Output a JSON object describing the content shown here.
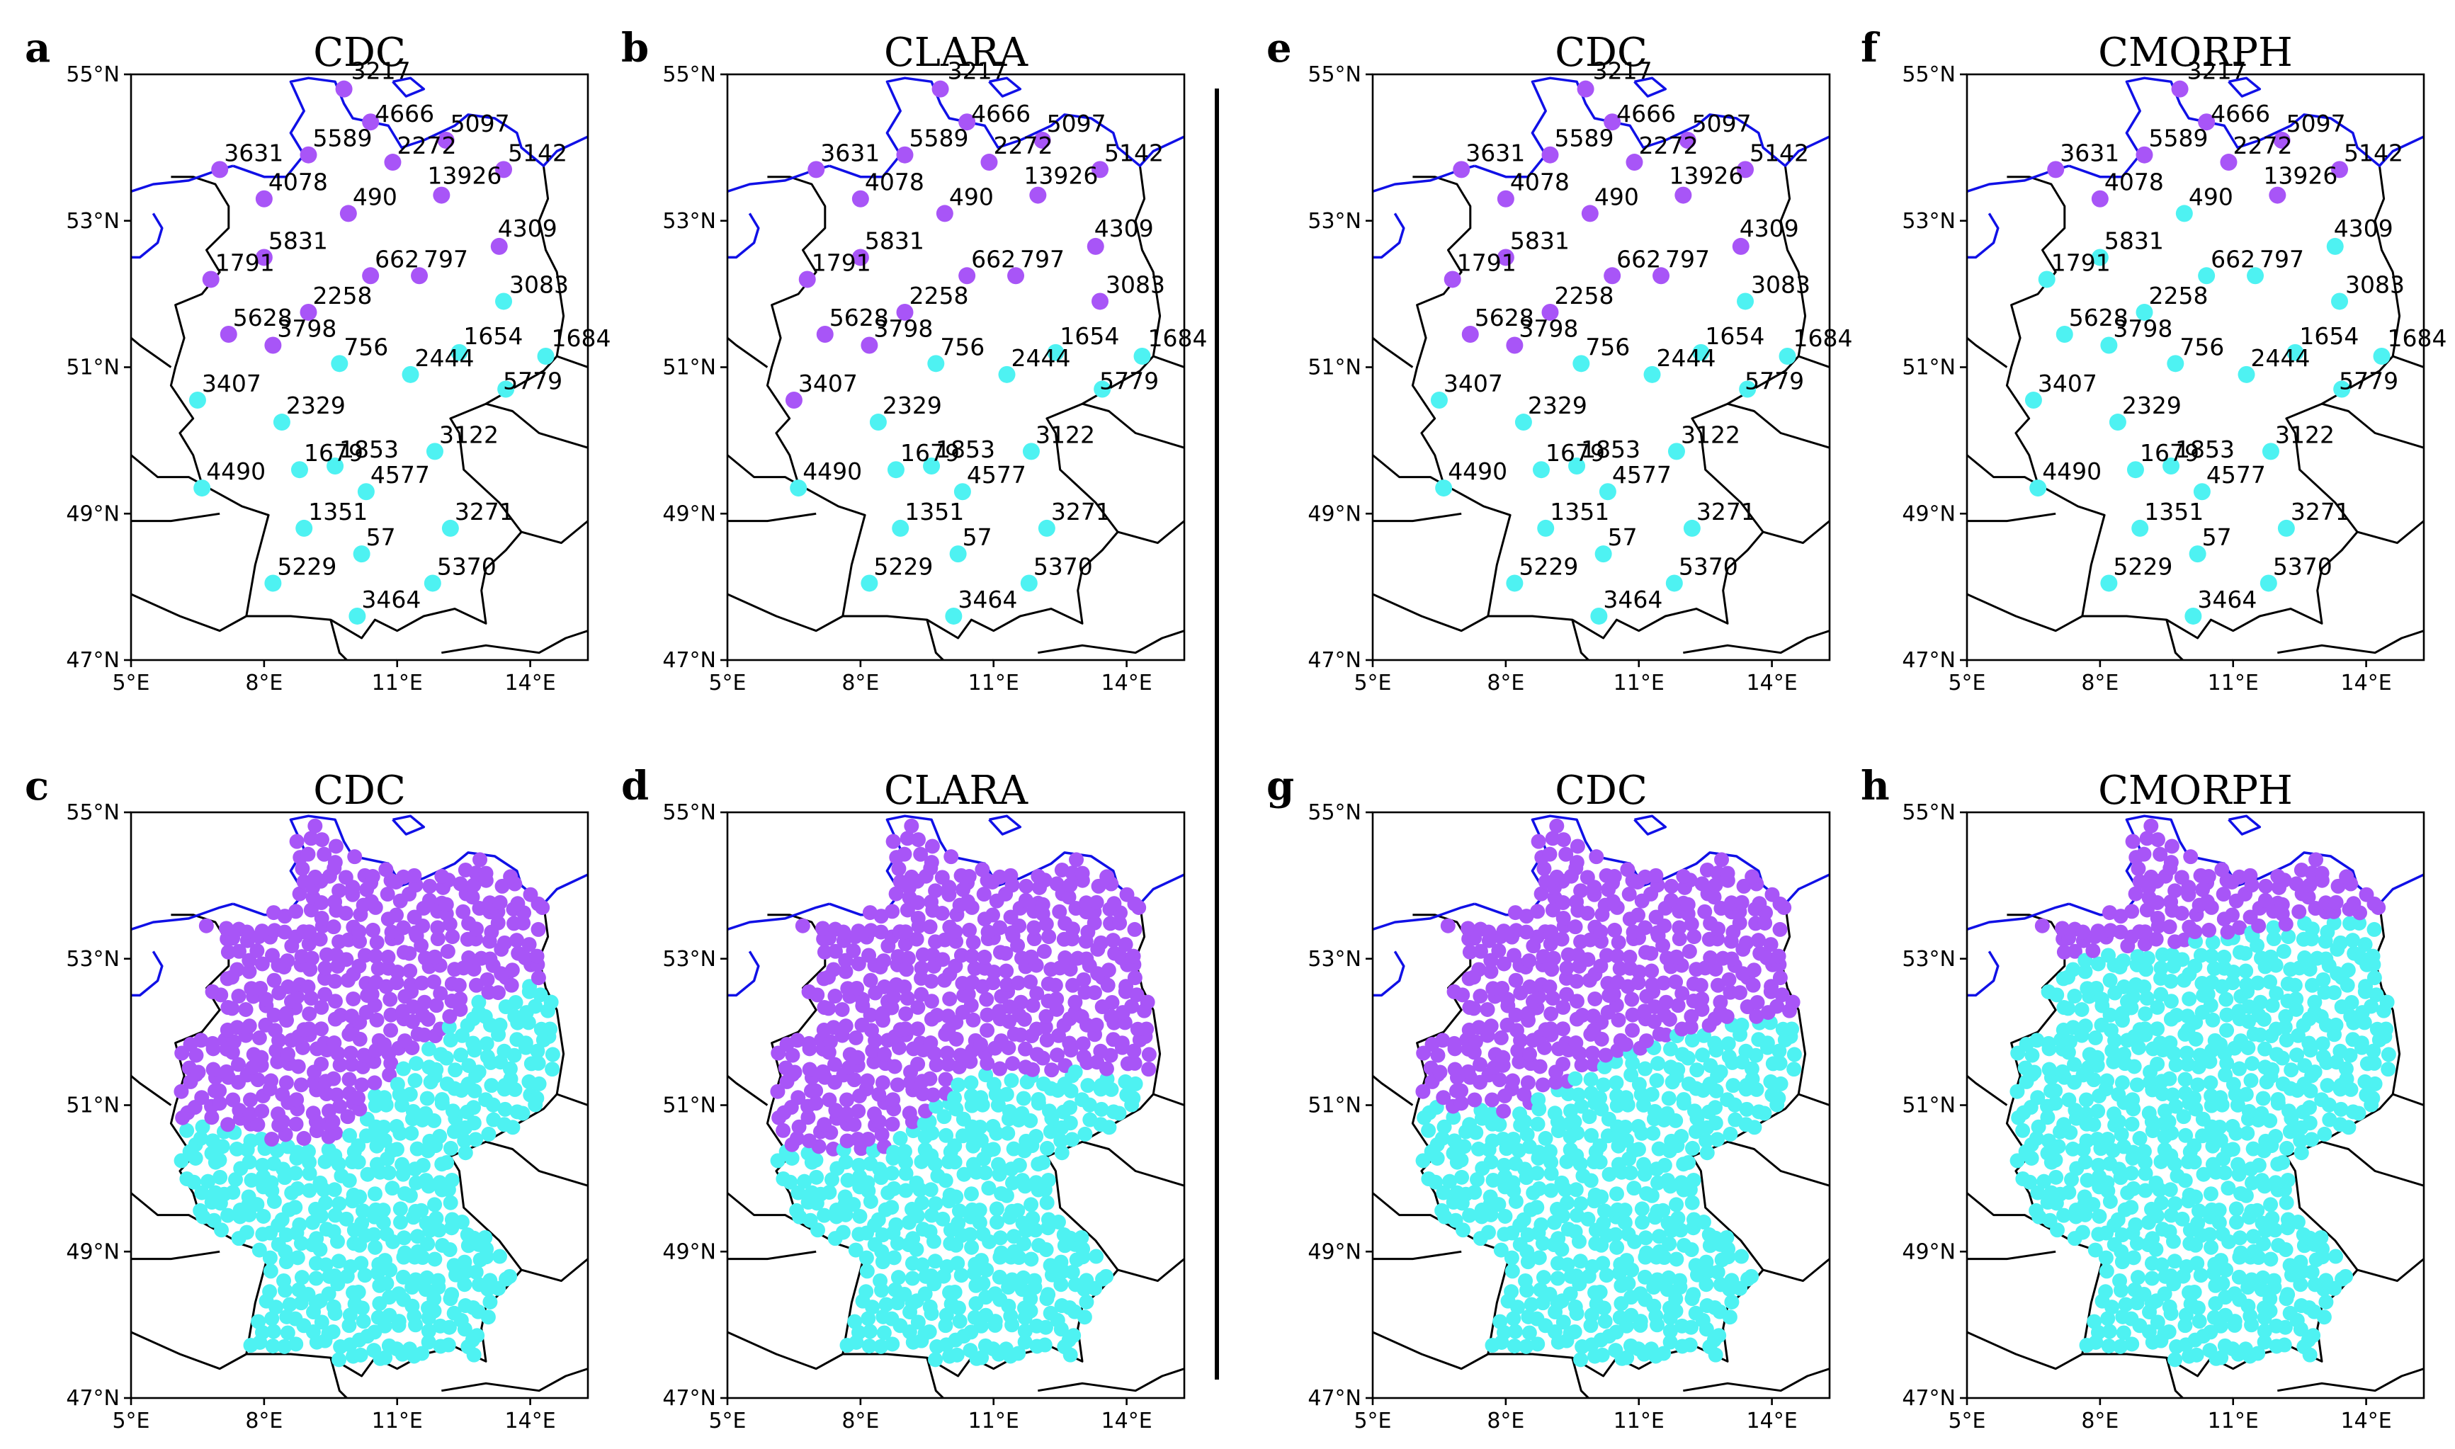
{
  "figure": {
    "colors": {
      "cluster_north": "#a855f7",
      "cluster_south": "#4ef2f2",
      "coast": "#1010e6",
      "border": "#000000"
    },
    "lon_ticks": [
      "5°E",
      "8°E",
      "11°E",
      "14°E"
    ],
    "lat_ticks": [
      "55°N",
      "53°N",
      "51°N",
      "49°N",
      "47°N"
    ]
  },
  "chart_data": {
    "type": "scatter",
    "extent": {
      "lon": [
        5,
        15.3
      ],
      "lat": [
        47,
        55
      ]
    },
    "stations": [
      {
        "id": "3217",
        "lon": 9.8,
        "lat": 54.8
      },
      {
        "id": "4666",
        "lon": 10.4,
        "lat": 54.35
      },
      {
        "id": "5097",
        "lon": 12.1,
        "lat": 54.1
      },
      {
        "id": "3631",
        "lon": 7.0,
        "lat": 53.7
      },
      {
        "id": "5589",
        "lon": 9.0,
        "lat": 53.9
      },
      {
        "id": "2272",
        "lon": 10.9,
        "lat": 53.8
      },
      {
        "id": "5142",
        "lon": 13.4,
        "lat": 53.7
      },
      {
        "id": "4078",
        "lon": 8.0,
        "lat": 53.3
      },
      {
        "id": "490",
        "lon": 9.9,
        "lat": 53.1
      },
      {
        "id": "13926",
        "lon": 12.0,
        "lat": 53.35
      },
      {
        "id": "4309",
        "lon": 13.3,
        "lat": 52.65
      },
      {
        "id": "5831",
        "lon": 8.0,
        "lat": 52.5
      },
      {
        "id": "1791",
        "lon": 6.8,
        "lat": 52.2
      },
      {
        "id": "662",
        "lon": 10.4,
        "lat": 52.25
      },
      {
        "id": "797",
        "lon": 11.5,
        "lat": 52.25
      },
      {
        "id": "3083",
        "lon": 13.4,
        "lat": 51.9
      },
      {
        "id": "2258",
        "lon": 9.0,
        "lat": 51.75
      },
      {
        "id": "5628",
        "lon": 7.2,
        "lat": 51.45
      },
      {
        "id": "3798",
        "lon": 8.2,
        "lat": 51.3
      },
      {
        "id": "756",
        "lon": 9.7,
        "lat": 51.05
      },
      {
        "id": "1654",
        "lon": 12.4,
        "lat": 51.2
      },
      {
        "id": "1684",
        "lon": 14.35,
        "lat": 51.15
      },
      {
        "id": "2444",
        "lon": 11.3,
        "lat": 50.9
      },
      {
        "id": "5779",
        "lon": 13.45,
        "lat": 50.7
      },
      {
        "id": "3407",
        "lon": 6.5,
        "lat": 50.55
      },
      {
        "id": "2329",
        "lon": 8.4,
        "lat": 50.25
      },
      {
        "id": "3122",
        "lon": 11.85,
        "lat": 49.85
      },
      {
        "id": "1679",
        "lon": 8.8,
        "lat": 49.6
      },
      {
        "id": "1853",
        "lon": 9.6,
        "lat": 49.65
      },
      {
        "id": "4490",
        "lon": 6.6,
        "lat": 49.35
      },
      {
        "id": "4577",
        "lon": 10.3,
        "lat": 49.3
      },
      {
        "id": "1351",
        "lon": 8.9,
        "lat": 48.8
      },
      {
        "id": "3271",
        "lon": 12.2,
        "lat": 48.8
      },
      {
        "id": "57",
        "lon": 10.2,
        "lat": 48.45
      },
      {
        "id": "5229",
        "lon": 8.2,
        "lat": 48.05
      },
      {
        "id": "5370",
        "lon": 11.8,
        "lat": 48.05
      },
      {
        "id": "3464",
        "lon": 10.1,
        "lat": 47.6
      }
    ],
    "panels": [
      {
        "letter": "a",
        "title": "CDC",
        "kind": "stations",
        "north": [
          "3217",
          "4666",
          "5097",
          "3631",
          "5589",
          "2272",
          "5142",
          "4078",
          "490",
          "13926",
          "4309",
          "5831",
          "1791",
          "662",
          "797",
          "2258",
          "5628",
          "3798"
        ]
      },
      {
        "letter": "b",
        "title": "CLARA",
        "kind": "stations",
        "north": [
          "3217",
          "4666",
          "5097",
          "3631",
          "5589",
          "2272",
          "5142",
          "4078",
          "490",
          "13926",
          "4309",
          "5831",
          "1791",
          "662",
          "797",
          "3083",
          "2258",
          "5628",
          "3798",
          "3407"
        ]
      },
      {
        "letter": "e",
        "title": "CDC",
        "kind": "stations",
        "north": [
          "3217",
          "4666",
          "5097",
          "3631",
          "5589",
          "2272",
          "5142",
          "4078",
          "490",
          "13926",
          "4309",
          "5831",
          "1791",
          "662",
          "797",
          "2258",
          "5628",
          "3798"
        ]
      },
      {
        "letter": "f",
        "title": "CMORPH",
        "kind": "stations",
        "north": [
          "3217",
          "4666",
          "5097",
          "3631",
          "5589",
          "2272",
          "5142",
          "4078",
          "13926"
        ]
      },
      {
        "letter": "c",
        "title": "CDC",
        "kind": "grid",
        "boundary": [
          [
            5.9,
            50.8
          ],
          [
            9.3,
            50.4
          ],
          [
            10.9,
            51.4
          ],
          [
            12.7,
            52.4
          ],
          [
            14.5,
            52.8
          ]
        ]
      },
      {
        "letter": "d",
        "title": "CLARA",
        "kind": "grid",
        "boundary": [
          [
            5.9,
            50.4
          ],
          [
            8.6,
            50.4
          ],
          [
            10.4,
            51.4
          ],
          [
            12.8,
            51.5
          ],
          [
            14.5,
            51.3
          ]
        ]
      },
      {
        "letter": "g",
        "title": "CDC",
        "kind": "grid",
        "boundary": [
          [
            5.9,
            51.0
          ],
          [
            8.2,
            50.9
          ],
          [
            10.2,
            51.6
          ],
          [
            12.1,
            52.0
          ],
          [
            14.5,
            52.3
          ]
        ]
      },
      {
        "letter": "h",
        "title": "CMORPH",
        "kind": "grid",
        "boundary": [
          [
            5.9,
            52.8
          ],
          [
            9.6,
            53.2
          ],
          [
            12.6,
            53.5
          ],
          [
            14.5,
            53.6
          ]
        ]
      }
    ]
  }
}
